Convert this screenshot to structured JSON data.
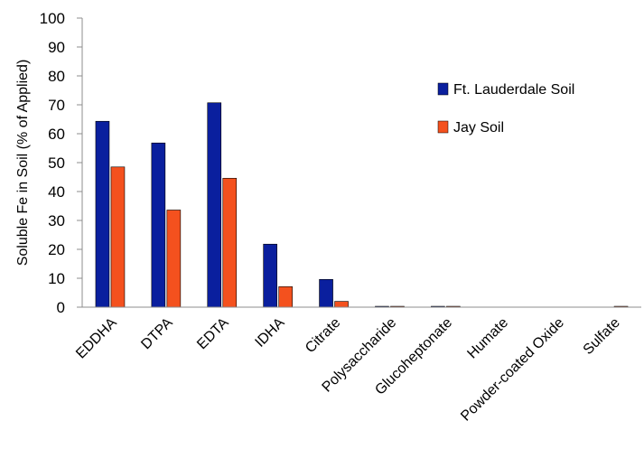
{
  "chart_data": {
    "type": "bar",
    "ylabel": "Soluble Fe in Soil (% of Applied)",
    "ylim": [
      0,
      100
    ],
    "yticks": [
      0,
      10,
      20,
      30,
      40,
      50,
      60,
      70,
      80,
      90,
      100
    ],
    "categories": [
      "EDDHA",
      "DTPA",
      "EDTA",
      "IDHA",
      "Citrate",
      "Polysaccharide",
      "Glucoheptonate",
      "Humate",
      "Powder-coated Oxide",
      "Sulfate"
    ],
    "series": [
      {
        "name": "Ft. Lauderdale Soil",
        "color": "#0a1f9e",
        "values": [
          64.3,
          56.8,
          70.7,
          21.8,
          9.6,
          0.3,
          0.3,
          0,
          0,
          0
        ]
      },
      {
        "name": "Jay Soil",
        "color": "#f4511e",
        "values": [
          48.5,
          33.6,
          44.6,
          7.1,
          2.0,
          0.3,
          0.3,
          0,
          0,
          0.3
        ]
      }
    ],
    "legend_position": "right",
    "grid": false
  }
}
